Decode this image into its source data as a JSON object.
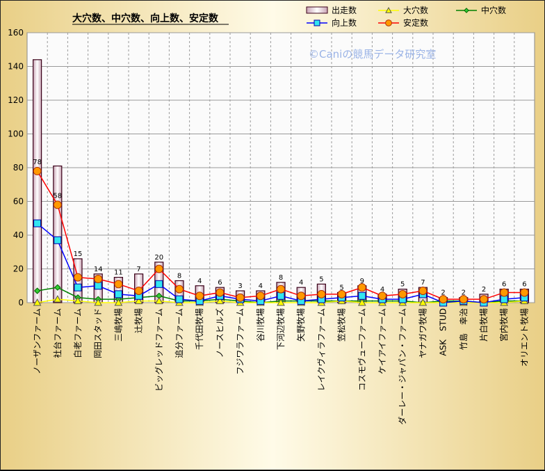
{
  "chart_data": {
    "type": "bar",
    "title": "大穴数、中穴数、向上数、安定数",
    "watermark": "©Caniの競馬データ研究室",
    "ylim": [
      0,
      160
    ],
    "yticks": [
      0,
      20,
      40,
      60,
      80,
      100,
      120,
      140,
      160
    ],
    "grid": true,
    "legend_position": "top-right",
    "categories": [
      "ノーザンファーム",
      "社台ファーム",
      "白老ファーム",
      "岡田スタッド",
      "三嶋牧場",
      "辻牧場",
      "ビッグレッドファーム",
      "追分ファーム",
      "千代田牧場",
      "ノースヒルズ",
      "フジワラファーム",
      "谷川牧場",
      "下河辺牧場",
      "矢野牧場",
      "レイクヴィラファーム",
      "笠松牧場",
      "コスモヴューファーム",
      "ケイアイファーム",
      "ダーレー・ジャパン・ファーム",
      "ヤナガワ牧場",
      "ASK　STUD",
      "竹島　幸治",
      "片白牧場",
      "宮内牧場",
      "オリエント牧場"
    ],
    "series": [
      {
        "name": "出走数",
        "kind": "bar",
        "color": "#f3dfe7",
        "values": [
          144,
          81,
          26,
          17,
          15,
          17,
          24,
          13,
          10,
          9,
          7,
          7,
          12,
          9,
          11,
          6,
          10,
          5,
          8,
          9,
          3,
          3,
          5,
          8,
          8
        ]
      },
      {
        "name": "大穴数",
        "kind": "line",
        "color": "#ffff00",
        "values": [
          0,
          2,
          1,
          0,
          0,
          1,
          1,
          0,
          0,
          1,
          0,
          0,
          0,
          0,
          0,
          1,
          0,
          0,
          0,
          0,
          0,
          0,
          0,
          0,
          1
        ]
      },
      {
        "name": "中穴数",
        "kind": "line",
        "color": "#008000",
        "values": [
          7,
          9,
          3,
          2,
          2,
          3,
          4,
          1,
          1,
          2,
          1,
          0,
          1,
          1,
          1,
          1,
          1,
          1,
          1,
          0,
          1,
          1,
          0,
          1,
          1
        ]
      },
      {
        "name": "向上数",
        "kind": "line",
        "color": "#0000ff",
        "values": [
          47,
          37,
          9,
          10,
          5,
          4,
          11,
          2,
          1,
          4,
          2,
          1,
          4,
          1,
          2,
          3,
          4,
          2,
          2,
          5,
          0,
          1,
          0,
          2,
          3
        ]
      },
      {
        "name": "安定数",
        "kind": "line",
        "color": "#ff0000",
        "values": [
          78,
          58,
          15,
          14,
          11,
          7,
          20,
          8,
          4,
          6,
          3,
          4,
          8,
          4,
          5,
          5,
          9,
          4,
          5,
          7,
          2,
          2,
          2,
          6,
          6
        ]
      }
    ]
  }
}
